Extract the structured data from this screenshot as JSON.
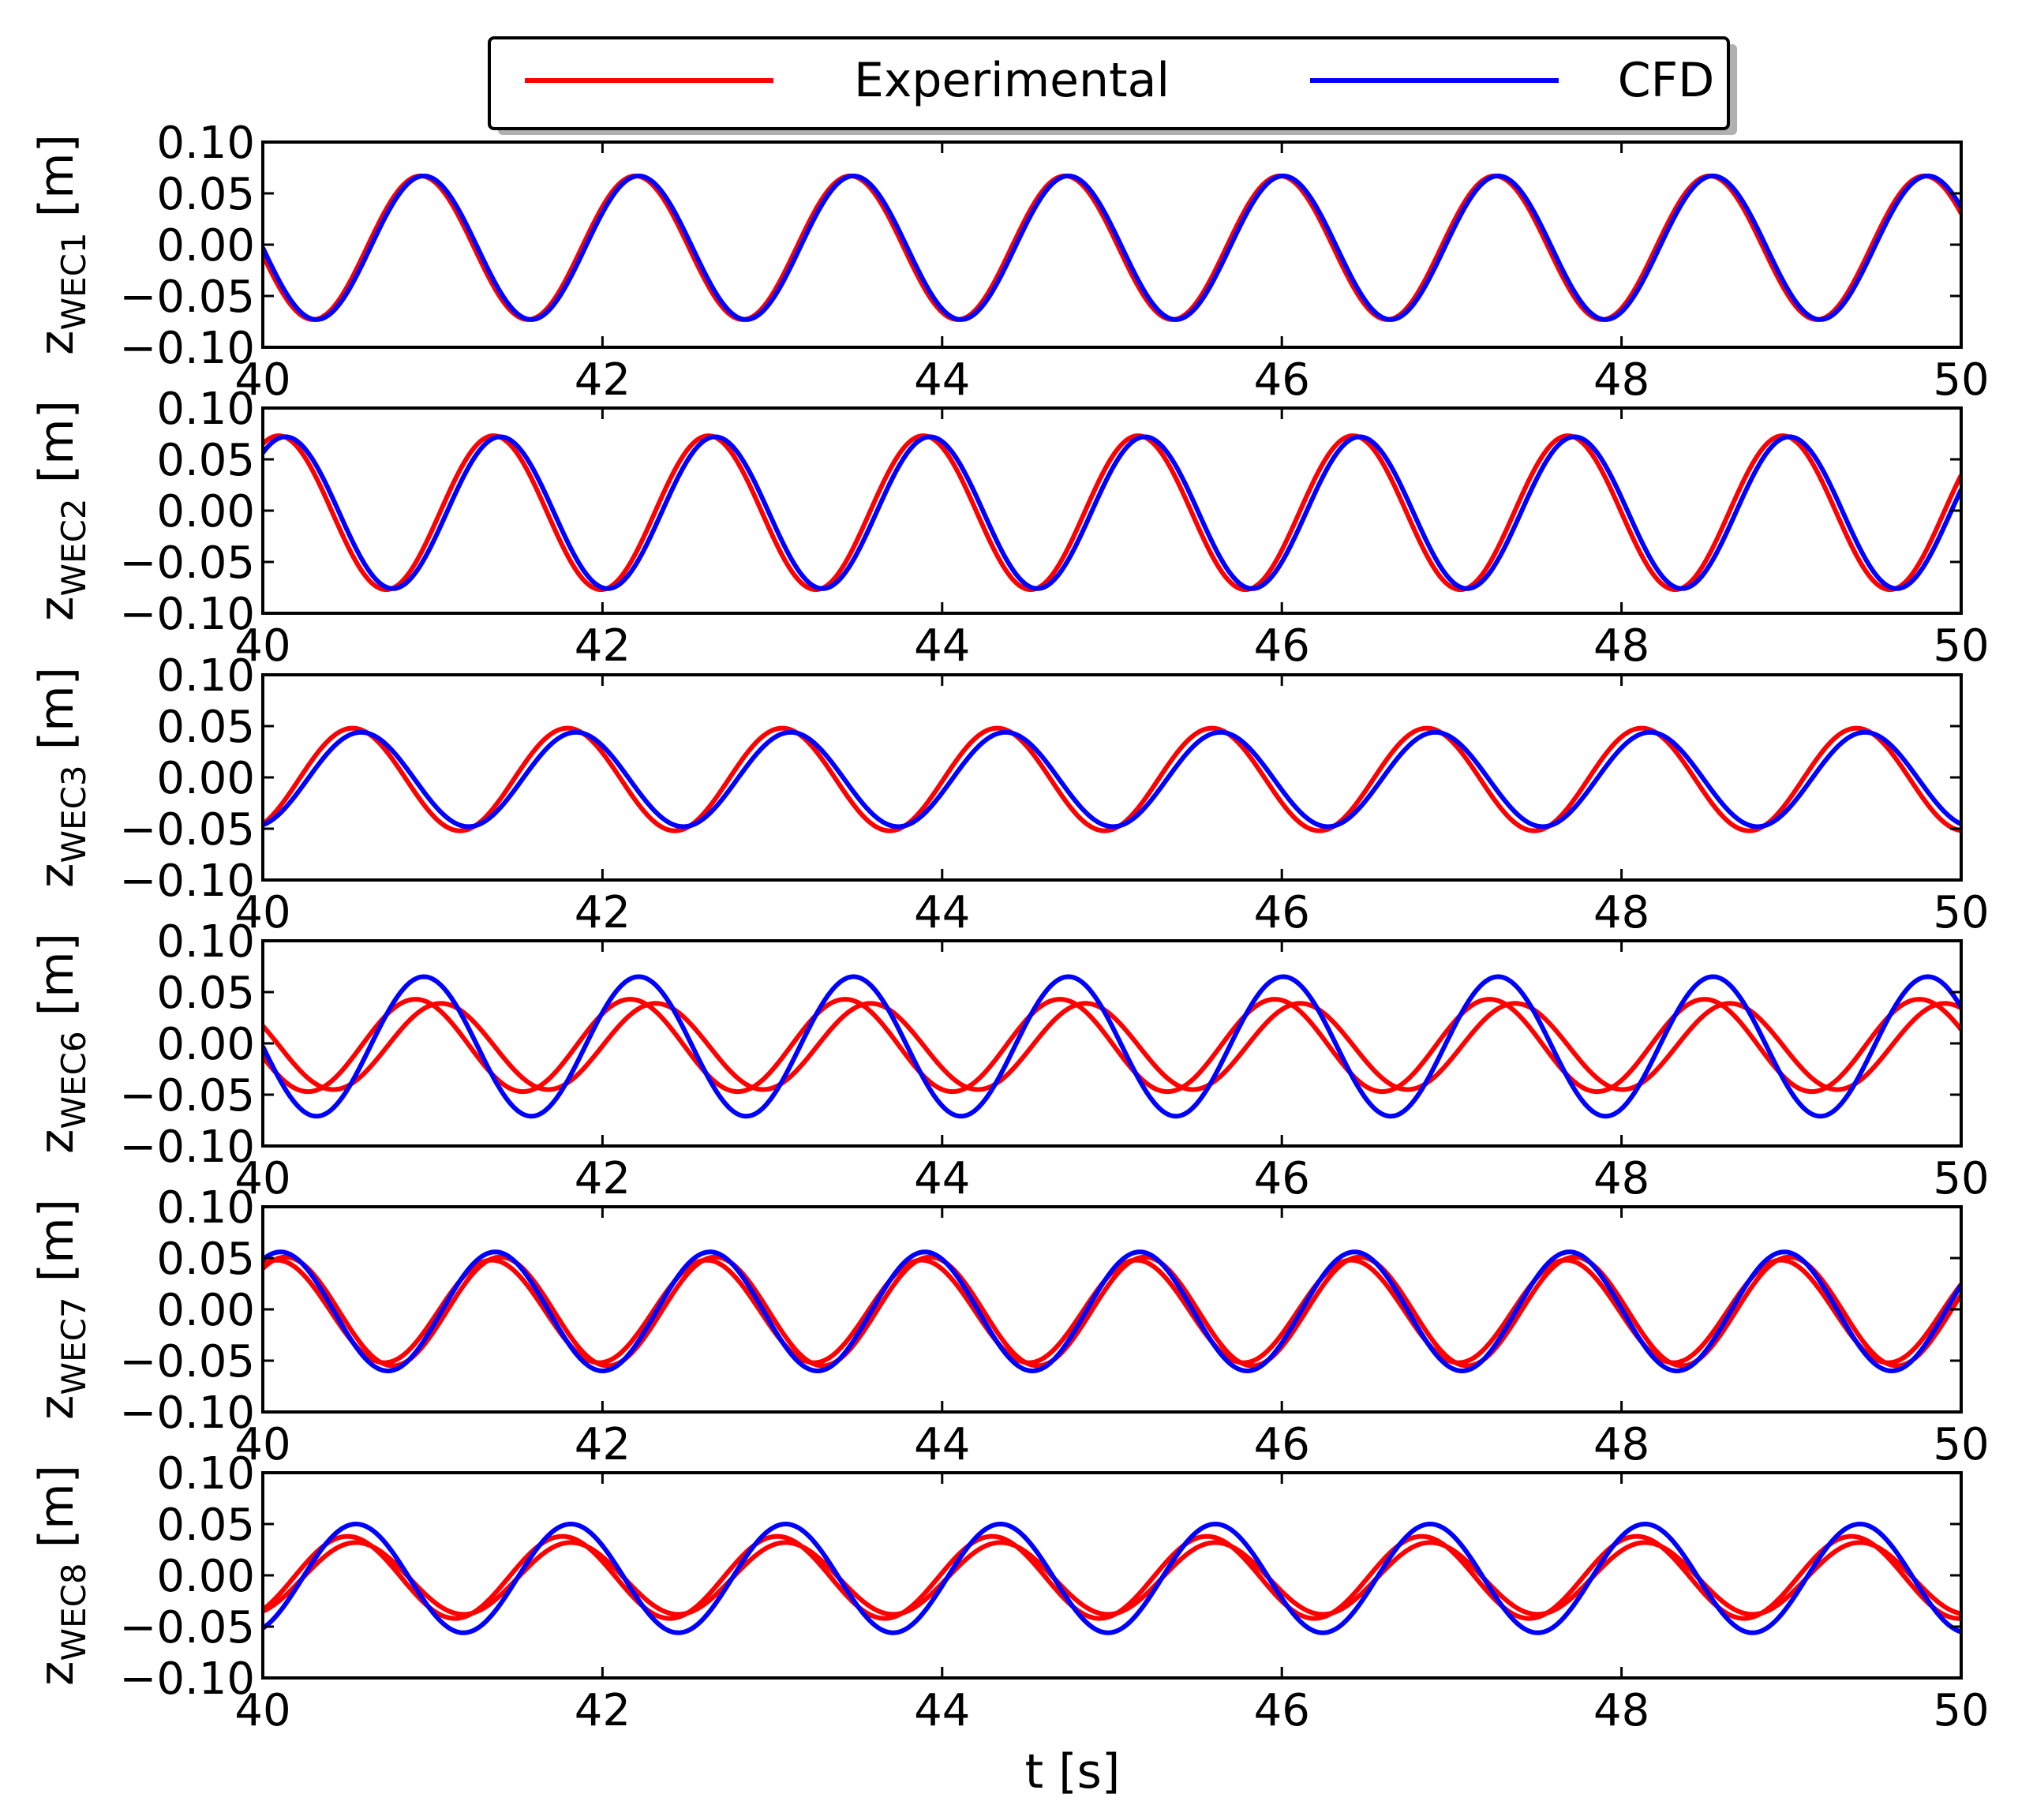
{
  "colors": {
    "experimental": "#ff0000",
    "cfd": "#0000ff",
    "axes": "#000000",
    "background": "#ffffff"
  },
  "legend": {
    "items": [
      {
        "label": "Experimental",
        "color": "#ff0000"
      },
      {
        "label": "CFD",
        "color": "#0000ff"
      }
    ],
    "placement": "top-center"
  },
  "chart_data": [
    {
      "type": "line",
      "ylabel_main": "z",
      "ylabel_sub": "WEC1",
      "ylabel_unit": " [m]",
      "xlim": [
        40,
        50
      ],
      "ylim": [
        -0.1,
        0.1
      ],
      "xticks": [
        "40",
        "42",
        "44",
        "46",
        "48",
        "50"
      ],
      "yticks": [
        "0.10",
        "0.05",
        "0.00",
        "−0.05",
        "−0.10"
      ],
      "series": [
        {
          "name": "Experimental",
          "color": "#ff0000",
          "lines": [
            {
              "mean": -0.003,
              "amp": 0.07,
              "period": 1.265,
              "phase0": -0.02
            }
          ]
        },
        {
          "name": "CFD",
          "color": "#0000ff",
          "lines": [
            {
              "mean": -0.003,
              "amp": 0.07,
              "period": 1.265,
              "phase0": 0.0
            }
          ]
        }
      ]
    },
    {
      "type": "line",
      "ylabel_main": "z",
      "ylabel_sub": "WEC2",
      "ylabel_unit": " [m]",
      "xlim": [
        40,
        50
      ],
      "ylim": [
        -0.1,
        0.1
      ],
      "xticks": [
        "40",
        "42",
        "44",
        "46",
        "48",
        "50"
      ],
      "yticks": [
        "0.10",
        "0.05",
        "0.00",
        "−0.05",
        "−0.10"
      ],
      "series": [
        {
          "name": "Experimental",
          "color": "#ff0000",
          "lines": [
            {
              "mean": -0.002,
              "amp": 0.075,
              "period": 1.265,
              "phase0": 0.41
            }
          ]
        },
        {
          "name": "CFD",
          "color": "#0000ff",
          "lines": [
            {
              "mean": -0.002,
              "amp": 0.074,
              "period": 1.265,
              "phase0": 0.45
            }
          ]
        }
      ]
    },
    {
      "type": "line",
      "ylabel_main": "z",
      "ylabel_sub": "WEC3",
      "ylabel_unit": " [m]",
      "xlim": [
        40,
        50
      ],
      "ylim": [
        -0.1,
        0.1
      ],
      "xticks": [
        "40",
        "42",
        "44",
        "46",
        "48",
        "50"
      ],
      "yticks": [
        "0.10",
        "0.05",
        "0.00",
        "−0.05",
        "−0.10"
      ],
      "series": [
        {
          "name": "Experimental",
          "color": "#ff0000",
          "lines": [
            {
              "mean": -0.002,
              "amp": 0.05,
              "period": 1.265,
              "phase0": -0.42
            }
          ]
        },
        {
          "name": "CFD",
          "color": "#0000ff",
          "lines": [
            {
              "mean": -0.002,
              "amp": 0.046,
              "period": 1.265,
              "phase0": -0.37
            }
          ]
        }
      ]
    },
    {
      "type": "line",
      "ylabel_main": "z",
      "ylabel_sub": "WEC6",
      "ylabel_unit": " [m]",
      "xlim": [
        40,
        50
      ],
      "ylim": [
        -0.1,
        0.1
      ],
      "xticks": [
        "40",
        "42",
        "44",
        "46",
        "48",
        "50"
      ],
      "yticks": [
        "0.10",
        "0.05",
        "0.00",
        "−0.05",
        "−0.10"
      ],
      "series": [
        {
          "name": "Experimental",
          "color": "#ff0000",
          "lines": [
            {
              "mean": -0.002,
              "amp": 0.045,
              "period": 1.265,
              "phase0": -0.05
            },
            {
              "mean": -0.003,
              "amp": 0.042,
              "period": 1.265,
              "phase0": 0.1
            }
          ]
        },
        {
          "name": "CFD",
          "color": "#0000ff",
          "lines": [
            {
              "mean": -0.003,
              "amp": 0.068,
              "period": 1.265,
              "phase0": 0.0
            }
          ]
        }
      ]
    },
    {
      "type": "line",
      "ylabel_main": "z",
      "ylabel_sub": "WEC7",
      "ylabel_unit": " [m]",
      "xlim": [
        40,
        50
      ],
      "ylim": [
        -0.1,
        0.1
      ],
      "xticks": [
        "40",
        "42",
        "44",
        "46",
        "48",
        "50"
      ],
      "yticks": [
        "0.10",
        "0.05",
        "0.00",
        "−0.05",
        "−0.10"
      ],
      "series": [
        {
          "name": "Experimental",
          "color": "#ff0000",
          "lines": [
            {
              "mean": -0.002,
              "amp": 0.053,
              "period": 1.265,
              "phase0": 0.45
            },
            {
              "mean": -0.002,
              "amp": 0.05,
              "period": 1.265,
              "phase0": 0.4
            }
          ]
        },
        {
          "name": "CFD",
          "color": "#0000ff",
          "lines": [
            {
              "mean": -0.002,
              "amp": 0.058,
              "period": 1.265,
              "phase0": 0.42
            }
          ]
        }
      ]
    },
    {
      "type": "line",
      "ylabel_main": "z",
      "ylabel_sub": "WEC8",
      "ylabel_unit": " [m]",
      "xlim": [
        40,
        50
      ],
      "ylim": [
        -0.1,
        0.1
      ],
      "xticks": [
        "40",
        "42",
        "44",
        "46",
        "48",
        "50"
      ],
      "yticks": [
        "0.10",
        "0.05",
        "0.00",
        "−0.05",
        "−0.10"
      ],
      "xlabel": "t [s]",
      "series": [
        {
          "name": "Experimental",
          "color": "#ff0000",
          "lines": [
            {
              "mean": -0.002,
              "amp": 0.04,
              "period": 1.265,
              "phase0": -0.45
            },
            {
              "mean": -0.003,
              "amp": 0.035,
              "period": 1.265,
              "phase0": -0.4
            }
          ]
        },
        {
          "name": "CFD",
          "color": "#0000ff",
          "lines": [
            {
              "mean": -0.003,
              "amp": 0.053,
              "period": 1.265,
              "phase0": -0.4
            }
          ]
        }
      ]
    }
  ]
}
